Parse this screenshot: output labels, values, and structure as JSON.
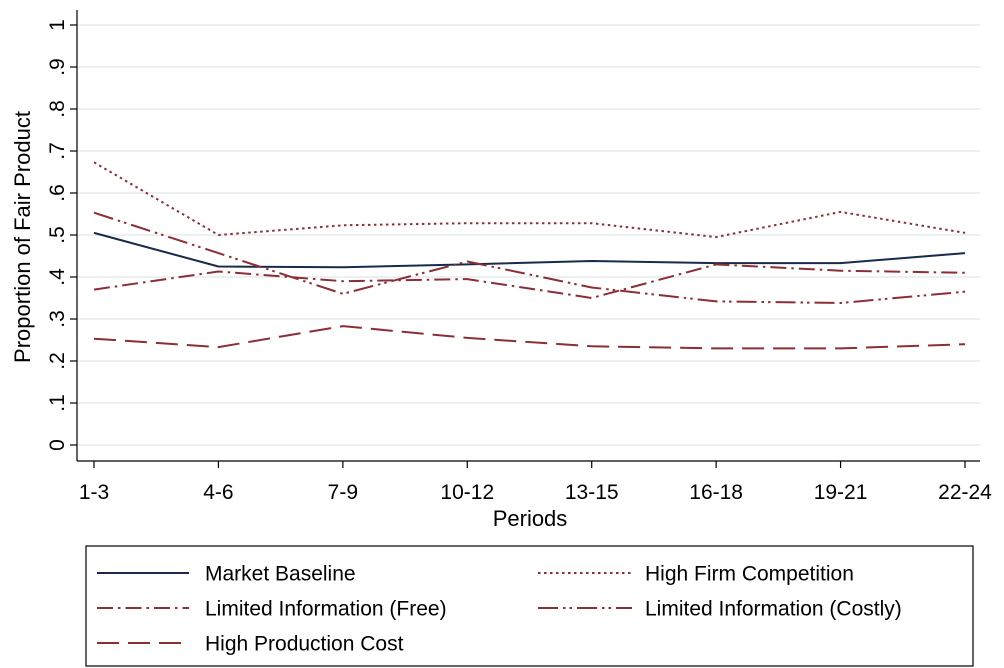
{
  "chart_data": {
    "type": "line",
    "title": "",
    "xlabel": "Periods",
    "ylabel": "Proportion of Fair Product",
    "categories": [
      "1-3",
      "4-6",
      "7-9",
      "10-12",
      "13-15",
      "16-18",
      "19-21",
      "22-24"
    ],
    "yticks": [
      "0",
      ".1",
      ".2",
      ".3",
      ".4",
      ".5",
      ".6",
      ".7",
      ".8",
      ".9",
      "1"
    ],
    "ylim": [
      0,
      1
    ],
    "grid": true,
    "legend_position": "bottom",
    "series": [
      {
        "name": "Market Baseline",
        "color": "#1a2a4a",
        "dash": "solid",
        "values": [
          0.505,
          0.425,
          0.423,
          0.43,
          0.438,
          0.433,
          0.433,
          0.457
        ]
      },
      {
        "name": "High Firm Competition",
        "color": "#8b2e35",
        "dash": "dot",
        "values": [
          0.673,
          0.5,
          0.523,
          0.528,
          0.528,
          0.495,
          0.555,
          0.505
        ]
      },
      {
        "name": "Limited Information (Free)",
        "color": "#8b2e35",
        "dash": "dashdot",
        "values": [
          0.37,
          0.413,
          0.39,
          0.395,
          0.35,
          0.43,
          0.415,
          0.41
        ]
      },
      {
        "name": "Limited Information (Costly)",
        "color": "#8b2e35",
        "dash": "longdashdot",
        "values": [
          0.553,
          0.457,
          0.36,
          0.437,
          0.375,
          0.342,
          0.338,
          0.365
        ]
      },
      {
        "name": "High Production Cost",
        "color": "#8b2e35",
        "dash": "longdash",
        "values": [
          0.253,
          0.233,
          0.283,
          0.255,
          0.235,
          0.23,
          0.23,
          0.24
        ]
      }
    ]
  }
}
